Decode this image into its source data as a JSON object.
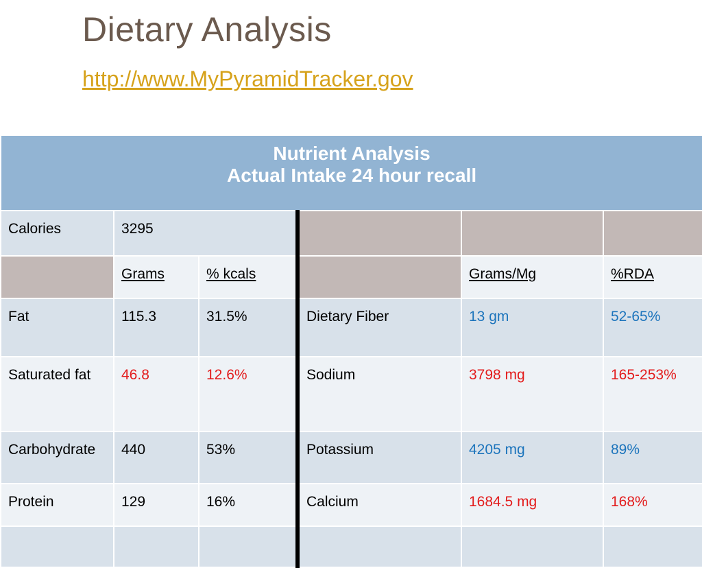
{
  "title": "Dietary Analysis",
  "link": "http://www.MyPyramidTracker.gov",
  "table": {
    "header_line1": "Nutrient Analysis",
    "header_line2": "Actual Intake 24 hour recall",
    "calories_label": "Calories",
    "calories_value": "3295",
    "col_grams": "Grams",
    "col_kcals": "% kcals",
    "col_grams_mg": "Grams/Mg",
    "col_rda": "%RDA",
    "rows": [
      {
        "nutrient": "Fat",
        "grams": "115.3",
        "kcals": "31.5%",
        "mineral": "Dietary Fiber",
        "amount": "13 gm",
        "rda": "52-65%"
      },
      {
        "nutrient": "Saturated fat",
        "grams": "46.8",
        "kcals": "12.6%",
        "mineral": "Sodium",
        "amount": "3798 mg",
        "rda": "165-253%"
      },
      {
        "nutrient": "Carbohydrate",
        "grams": "440",
        "kcals": "53%",
        "mineral": "Potassium",
        "amount": "4205 mg",
        "rda": "89%"
      },
      {
        "nutrient": "Protein",
        "grams": "129",
        "kcals": "16%",
        "mineral": "Calcium",
        "amount": "1684.5 mg",
        "rda": "168%"
      }
    ]
  },
  "colors": {
    "title": "#6b5a4e",
    "link": "#d6a21b",
    "header_bg": "#92b4d3",
    "over_limit": "#e31b1b",
    "within_limit": "#1c74bc",
    "gray_cell": "#c2b8b6"
  }
}
